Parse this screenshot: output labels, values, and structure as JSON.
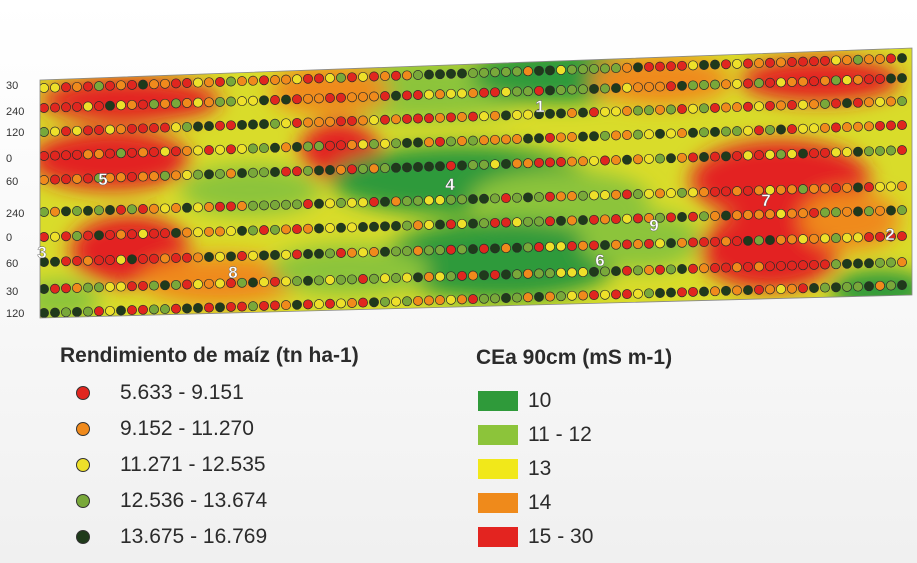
{
  "map": {
    "row_labels": [
      "30",
      "240",
      "120",
      "0",
      "60",
      "240",
      "0",
      "60",
      "30",
      "120"
    ],
    "zone_labels": [
      "1",
      "2",
      "3",
      "4",
      "5",
      "6",
      "7",
      "8",
      "9"
    ]
  },
  "yield_legend": {
    "title": "Rendimiento de maíz (tn ha-1)",
    "classes": [
      {
        "label": "5.633 - 9.151",
        "color": "#e0261f"
      },
      {
        "label": "9.152 - 11.270",
        "color": "#f08a1c"
      },
      {
        "label": "11.271 - 12.535",
        "color": "#eee02a"
      },
      {
        "label": "12.536 - 13.674",
        "color": "#79a83a"
      },
      {
        "label": "13.675 - 16.769",
        "color": "#1f3a1b"
      }
    ]
  },
  "cea_legend": {
    "title": "CEa 90cm (mS m-1)",
    "classes": [
      {
        "label": "10",
        "color": "#2f9a3a"
      },
      {
        "label": "11 - 12",
        "color": "#8cc43a"
      },
      {
        "label": "13",
        "color": "#f1e81a"
      },
      {
        "label": "14",
        "color": "#ef8a1b"
      },
      {
        "label": "15 - 30",
        "color": "#e32420"
      }
    ]
  }
}
